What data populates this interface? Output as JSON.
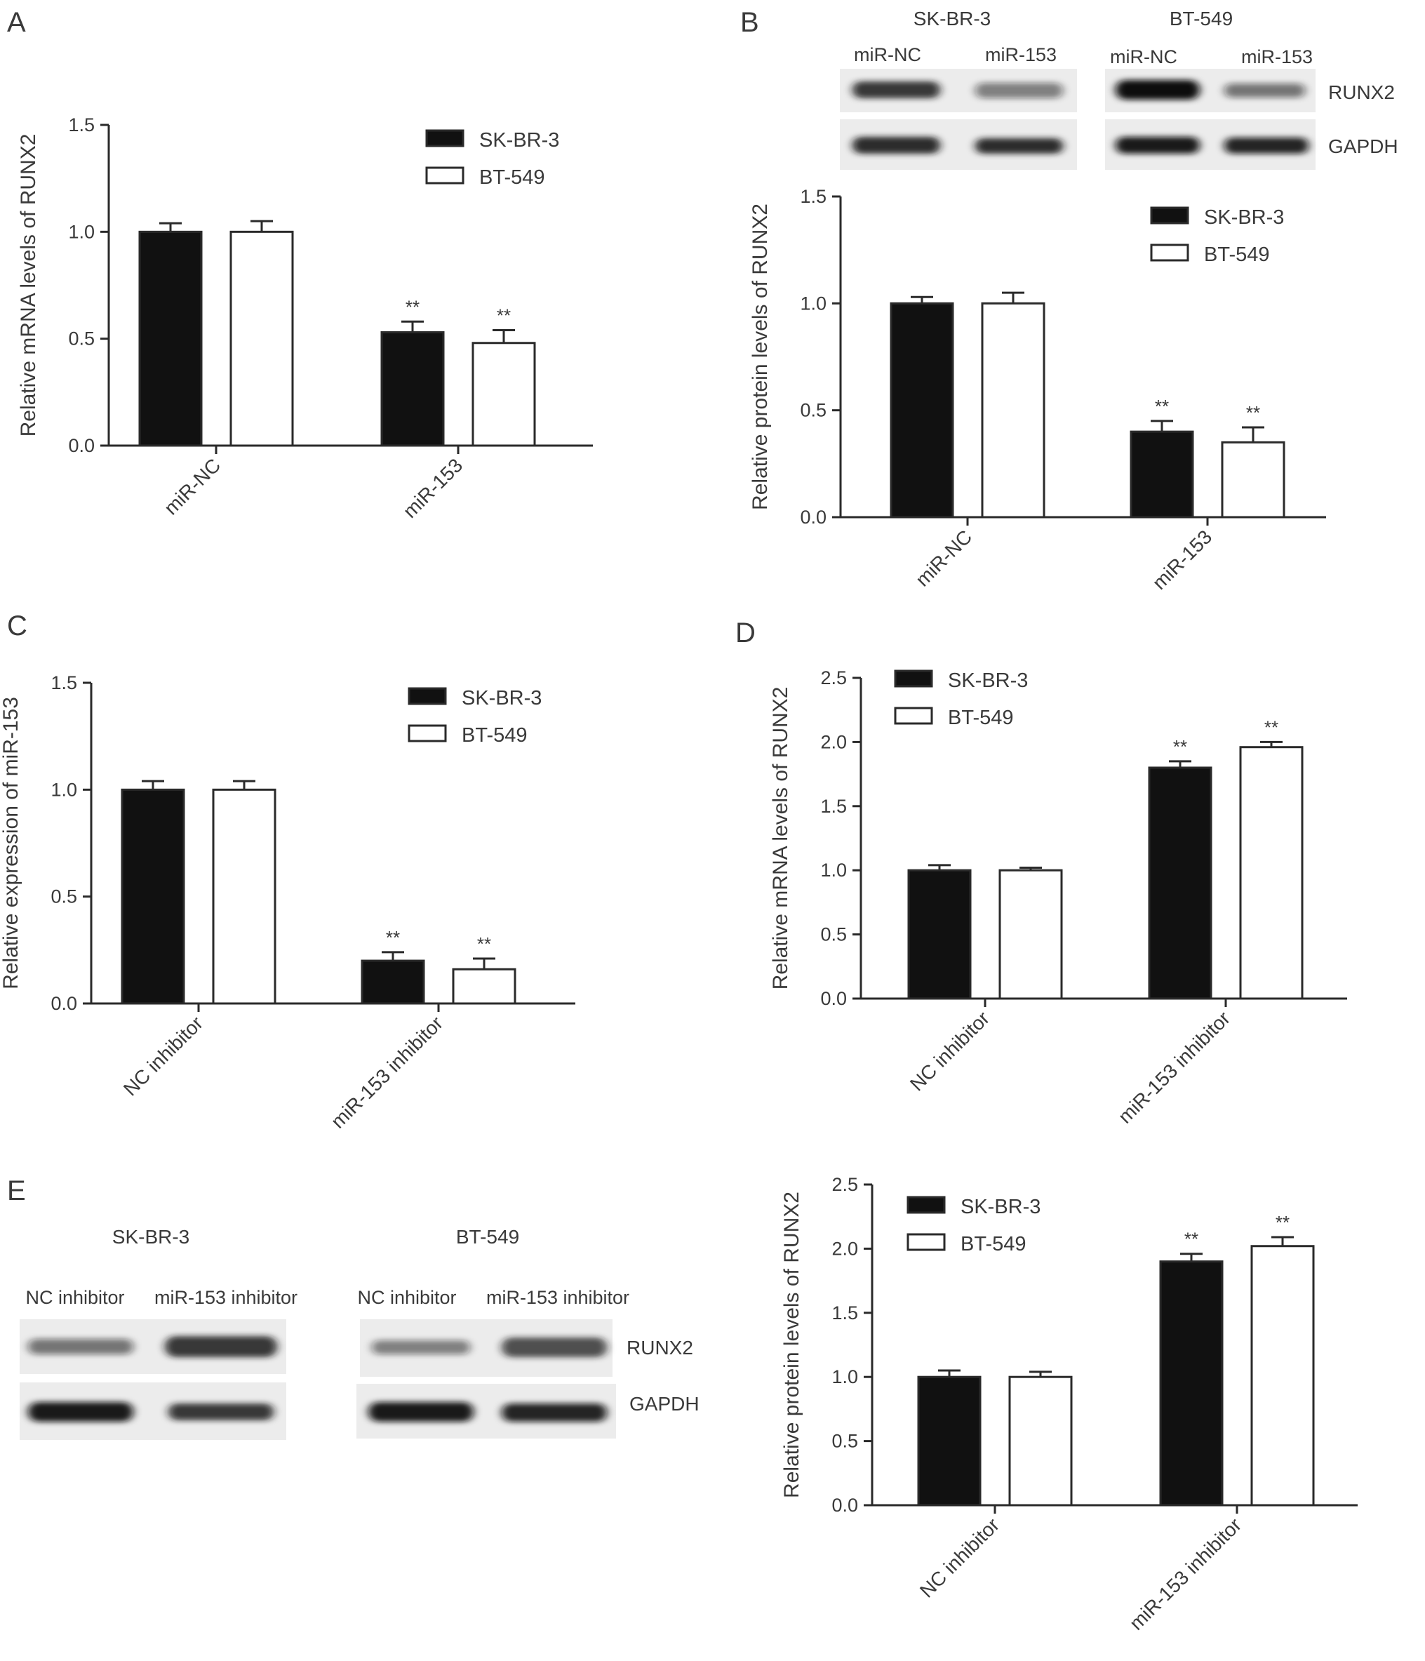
{
  "colors": {
    "series_fill": [
      "#111111",
      "#ffffff"
    ],
    "axis": "#2a2a2a"
  },
  "legend": {
    "position": "top-right",
    "swatch_style": [
      "filled",
      "outline"
    ]
  },
  "chart_data": [
    {
      "panel": "A",
      "type": "bar",
      "title": "",
      "ylabel": "Relative mRNA levels of RUNX2",
      "xlabel": "",
      "categories": [
        "miR-NC",
        "miR-153"
      ],
      "ylim": [
        0,
        1.5
      ],
      "yticks": [
        "0.0",
        "0.5",
        "1.0",
        "1.5"
      ],
      "grid": false,
      "series": [
        {
          "name": "SK-BR-3",
          "values": [
            1.0,
            0.53
          ],
          "errors": [
            0.04,
            0.05
          ]
        },
        {
          "name": "BT-549",
          "values": [
            1.0,
            0.48
          ],
          "errors": [
            0.05,
            0.06
          ]
        }
      ],
      "significance": [
        [
          "",
          "**"
        ],
        [
          "",
          "**"
        ]
      ]
    },
    {
      "panel": "B",
      "type": "bar",
      "title": "",
      "ylabel": "Relative protein levels of RUNX2",
      "xlabel": "",
      "categories": [
        "miR-NC",
        "miR-153"
      ],
      "ylim": [
        0,
        1.5
      ],
      "yticks": [
        "0.0",
        "0.5",
        "1.0",
        "1.5"
      ],
      "grid": false,
      "series": [
        {
          "name": "SK-BR-3",
          "values": [
            1.0,
            0.4
          ],
          "errors": [
            0.03,
            0.05
          ]
        },
        {
          "name": "BT-549",
          "values": [
            1.0,
            0.35
          ],
          "errors": [
            0.05,
            0.07
          ]
        }
      ],
      "significance": [
        [
          "",
          "**"
        ],
        [
          "",
          "**"
        ]
      ]
    },
    {
      "panel": "C",
      "type": "bar",
      "title": "",
      "ylabel": "Relative expression of miR-153",
      "xlabel": "",
      "categories": [
        "NC inhibitor",
        "miR-153 inhibitor"
      ],
      "ylim": [
        0,
        1.5
      ],
      "yticks": [
        "0.0",
        "0.5",
        "1.0",
        "1.5"
      ],
      "grid": false,
      "series": [
        {
          "name": "SK-BR-3",
          "values": [
            1.0,
            0.2
          ],
          "errors": [
            0.04,
            0.04
          ]
        },
        {
          "name": "BT-549",
          "values": [
            1.0,
            0.16
          ],
          "errors": [
            0.04,
            0.05
          ]
        }
      ],
      "significance": [
        [
          "",
          "**"
        ],
        [
          "",
          "**"
        ]
      ]
    },
    {
      "panel": "D",
      "type": "bar",
      "title": "",
      "ylabel": "Relative mRNA levels of RUNX2",
      "xlabel": "",
      "categories": [
        "NC inhibitor",
        "miR-153 inhibitor"
      ],
      "ylim": [
        0,
        2.5
      ],
      "yticks": [
        "0.0",
        "0.5",
        "1.0",
        "1.5",
        "2.0",
        "2.5"
      ],
      "grid": false,
      "series": [
        {
          "name": "SK-BR-3",
          "values": [
            1.0,
            1.8
          ],
          "errors": [
            0.04,
            0.05
          ]
        },
        {
          "name": "BT-549",
          "values": [
            1.0,
            1.96
          ],
          "errors": [
            0.02,
            0.04
          ]
        }
      ],
      "significance": [
        [
          "",
          "**"
        ],
        [
          "",
          "**"
        ]
      ]
    },
    {
      "panel": "E",
      "type": "bar",
      "title": "",
      "ylabel": "Relative protein levels of RUNX2",
      "xlabel": "",
      "categories": [
        "NC inhibitor",
        "miR-153 inhibitor"
      ],
      "ylim": [
        0,
        2.5
      ],
      "yticks": [
        "0.0",
        "0.5",
        "1.0",
        "1.5",
        "2.0",
        "2.5"
      ],
      "grid": false,
      "series": [
        {
          "name": "SK-BR-3",
          "values": [
            1.0,
            1.9
          ],
          "errors": [
            0.05,
            0.06
          ]
        },
        {
          "name": "BT-549",
          "values": [
            1.0,
            2.02
          ],
          "errors": [
            0.04,
            0.07
          ]
        }
      ],
      "significance": [
        [
          "",
          "**"
        ],
        [
          "",
          "**"
        ]
      ]
    }
  ],
  "panel_labels": [
    "A",
    "B",
    "C",
    "D",
    "E"
  ],
  "blots": {
    "B": {
      "cell_lines": [
        "SK-BR-3",
        "BT-549"
      ],
      "lanes": [
        [
          "miR-NC",
          "miR-153"
        ],
        [
          "miR-NC",
          "miR-153"
        ]
      ],
      "rows": [
        "RUNX2",
        "GAPDH"
      ],
      "band_intensity": {
        "RUNX2": [
          [
            0.85,
            0.5
          ],
          [
            1.0,
            0.55
          ]
        ],
        "GAPDH": [
          [
            0.9,
            0.9
          ],
          [
            0.95,
            0.9
          ]
        ]
      }
    },
    "E": {
      "cell_lines": [
        "SK-BR-3",
        "BT-549"
      ],
      "lanes": [
        [
          "NC inhibitor",
          "miR-153 inhibitor"
        ],
        [
          "NC inhibitor",
          "miR-153 inhibitor"
        ]
      ],
      "rows": [
        "RUNX2",
        "GAPDH"
      ],
      "band_intensity": {
        "RUNX2": [
          [
            0.55,
            0.85
          ],
          [
            0.5,
            0.75
          ]
        ],
        "GAPDH": [
          [
            0.95,
            0.85
          ],
          [
            0.95,
            0.9
          ]
        ]
      }
    }
  }
}
